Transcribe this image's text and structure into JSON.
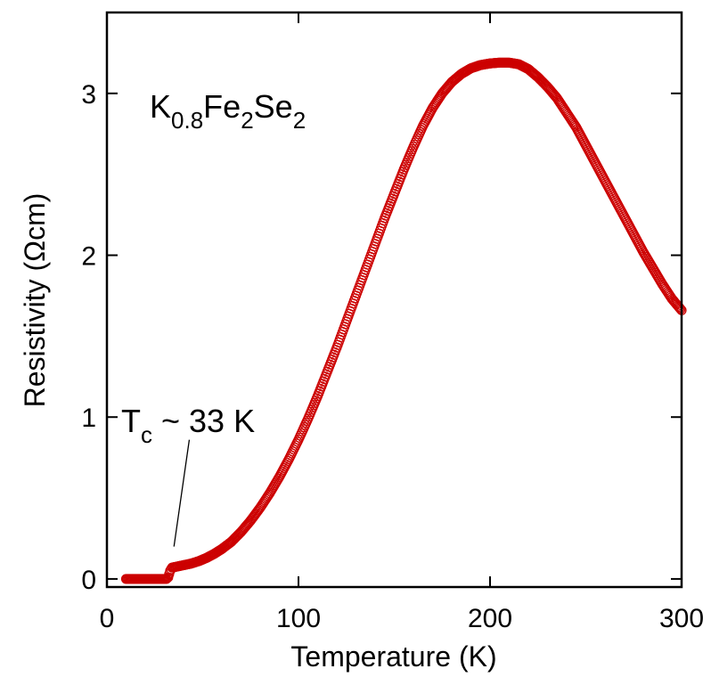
{
  "chart_data": {
    "type": "scatter",
    "xlabel": "Temperature (K)",
    "ylabel": "Resistivity (Ωcm)",
    "xlim": [
      0,
      300
    ],
    "ylim": [
      -0.05,
      3.5
    ],
    "x_ticks": [
      0,
      100,
      200,
      300
    ],
    "y_ticks": [
      0,
      1,
      2,
      3
    ],
    "x_tick_labels": [
      "0",
      "100",
      "200",
      "300"
    ],
    "y_tick_labels": [
      "0",
      "1",
      "2",
      "3"
    ],
    "grid": false,
    "marker": "open-circle",
    "marker_color": "#cc0000",
    "annotations": {
      "formula": {
        "K": "K",
        "s1": "0.8",
        "Fe": "Fe",
        "s2": "2",
        "Se": "Se",
        "s3": "2"
      },
      "tc": {
        "T": "T",
        "sub": "c",
        "rest": " ~ 33 K",
        "arrow_from": [
          43,
          0.86
        ],
        "arrow_to": [
          35,
          0.2
        ]
      }
    },
    "series": [
      {
        "points": [
          [
            10,
            0.0
          ],
          [
            12,
            0.0
          ],
          [
            14,
            0.0
          ],
          [
            16,
            0.0
          ],
          [
            18,
            0.0
          ],
          [
            20,
            0.0
          ],
          [
            22,
            0.0
          ],
          [
            24,
            0.0
          ],
          [
            26,
            0.0
          ],
          [
            28,
            0.0
          ],
          [
            30,
            0.0
          ],
          [
            31,
            0.0
          ],
          [
            32,
            0.01
          ],
          [
            33,
            0.05
          ],
          [
            34,
            0.07
          ],
          [
            36,
            0.075
          ],
          [
            38,
            0.08
          ],
          [
            40,
            0.085
          ],
          [
            44,
            0.095
          ],
          [
            48,
            0.11
          ],
          [
            52,
            0.13
          ],
          [
            56,
            0.155
          ],
          [
            60,
            0.185
          ],
          [
            65,
            0.23
          ],
          [
            70,
            0.29
          ],
          [
            75,
            0.36
          ],
          [
            80,
            0.44
          ],
          [
            85,
            0.53
          ],
          [
            90,
            0.63
          ],
          [
            95,
            0.74
          ],
          [
            100,
            0.86
          ],
          [
            105,
            0.99
          ],
          [
            110,
            1.13
          ],
          [
            115,
            1.28
          ],
          [
            120,
            1.43
          ],
          [
            125,
            1.59
          ],
          [
            130,
            1.75
          ],
          [
            135,
            1.91
          ],
          [
            140,
            2.07
          ],
          [
            145,
            2.23
          ],
          [
            150,
            2.38
          ],
          [
            155,
            2.53
          ],
          [
            160,
            2.67
          ],
          [
            165,
            2.8
          ],
          [
            170,
            2.91
          ],
          [
            175,
            3.0
          ],
          [
            180,
            3.07
          ],
          [
            185,
            3.12
          ],
          [
            190,
            3.155
          ],
          [
            195,
            3.175
          ],
          [
            200,
            3.185
          ],
          [
            205,
            3.19
          ],
          [
            210,
            3.19
          ],
          [
            215,
            3.18
          ],
          [
            220,
            3.15
          ],
          [
            225,
            3.1
          ],
          [
            230,
            3.04
          ],
          [
            235,
            2.97
          ],
          [
            240,
            2.88
          ],
          [
            245,
            2.79
          ],
          [
            250,
            2.68
          ],
          [
            255,
            2.57
          ],
          [
            260,
            2.46
          ],
          [
            265,
            2.35
          ],
          [
            270,
            2.24
          ],
          [
            275,
            2.13
          ],
          [
            280,
            2.02
          ],
          [
            285,
            1.92
          ],
          [
            290,
            1.82
          ],
          [
            295,
            1.73
          ],
          [
            300,
            1.66
          ]
        ]
      }
    ]
  }
}
